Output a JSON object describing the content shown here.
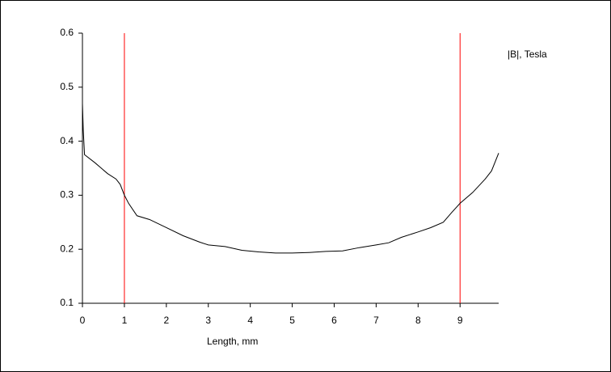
{
  "chart_data": {
    "type": "line",
    "x_label": "Length, mm",
    "series": [
      {
        "name": "|B|, Tesla",
        "color": "#000000",
        "x": [
          0,
          0.02,
          0.05,
          0.3,
          0.6,
          0.8,
          0.9,
          1.0,
          1.1,
          1.3,
          1.6,
          2.0,
          2.4,
          2.8,
          3.0,
          3.4,
          3.8,
          4.2,
          4.6,
          5.0,
          5.4,
          5.8,
          6.2,
          6.6,
          7.0,
          7.3,
          7.6,
          8.0,
          8.3,
          8.6,
          8.8,
          9.0,
          9.3,
          9.6,
          9.75,
          9.92
        ],
        "values": [
          0.47,
          0.42,
          0.375,
          0.36,
          0.34,
          0.33,
          0.32,
          0.3,
          0.285,
          0.262,
          0.255,
          0.24,
          0.225,
          0.213,
          0.208,
          0.205,
          0.198,
          0.195,
          0.193,
          0.193,
          0.194,
          0.196,
          0.197,
          0.203,
          0.208,
          0.212,
          0.222,
          0.232,
          0.24,
          0.25,
          0.268,
          0.285,
          0.305,
          0.33,
          0.345,
          0.378
        ]
      }
    ],
    "vlines": [
      1,
      9
    ],
    "vline_color": "#ff0000",
    "xlim": [
      0,
      9.92
    ],
    "xticks": [
      0,
      1,
      2,
      3,
      4,
      5,
      6,
      7,
      8,
      9
    ],
    "ylim": [
      0.1,
      0.6
    ],
    "yticks": [
      0.1,
      0.2,
      0.3,
      0.4,
      0.5,
      0.6
    ],
    "grid": false
  }
}
